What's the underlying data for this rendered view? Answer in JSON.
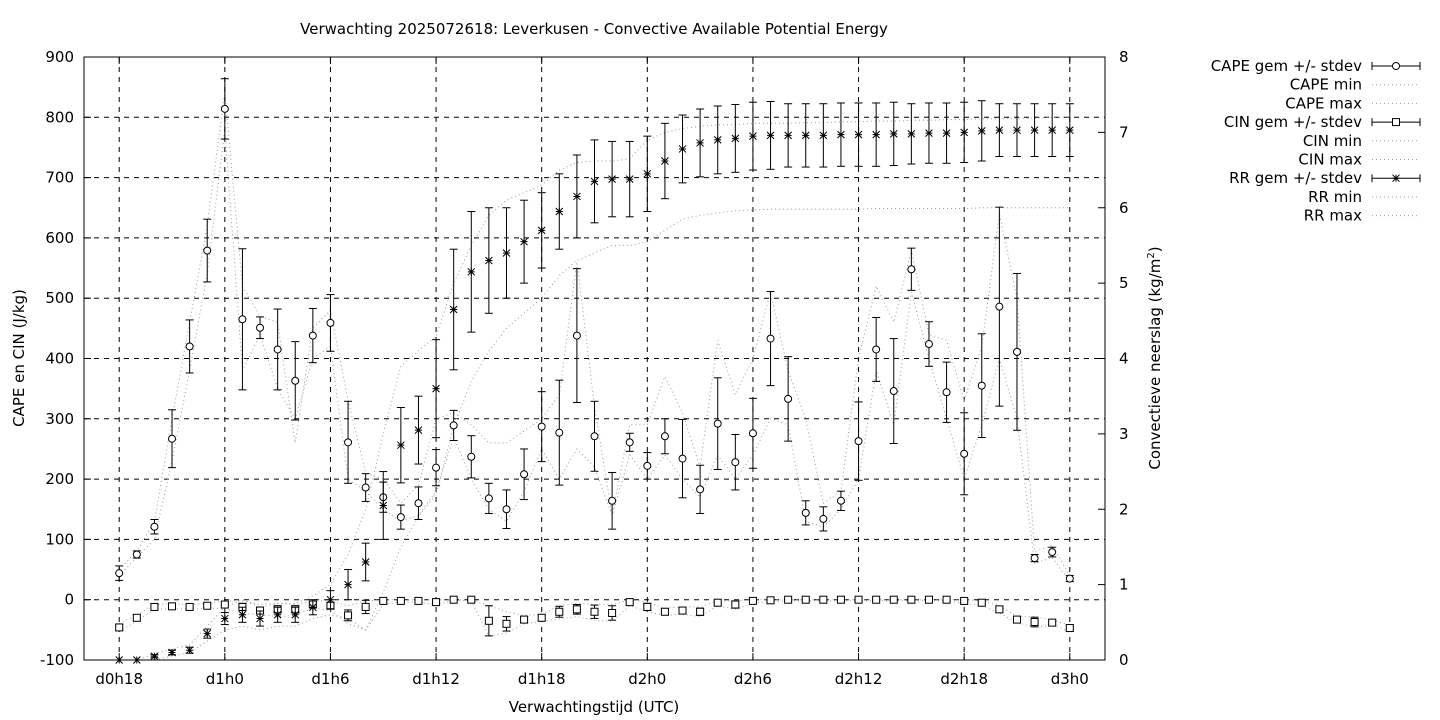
{
  "chart_data": {
    "type": "line",
    "title": "Verwachting 2025072618: Leverkusen - Convective Available Potential Energy",
    "xlabel": "Verwachtingstijd (UTC)",
    "ylabel": "CAPE en CIN (J/kg)",
    "y2label_main": "Convectieve neerslag (kg/m",
    "y2label_sup": "2",
    "y2label_end": ")",
    "x_unit": "hours after 2025-07-26 18 UTC",
    "xlim": [
      -2,
      56
    ],
    "ylim": [
      -100,
      900
    ],
    "y2lim": [
      0,
      8
    ],
    "grid": true,
    "legend_position": "outside-right",
    "x_ticks": [
      {
        "value": 0,
        "label": "d0h18"
      },
      {
        "value": 6,
        "label": "d1h0"
      },
      {
        "value": 12,
        "label": "d1h6"
      },
      {
        "value": 18,
        "label": "d1h12"
      },
      {
        "value": 24,
        "label": "d1h18"
      },
      {
        "value": 30,
        "label": "d2h0"
      },
      {
        "value": 36,
        "label": "d2h6"
      },
      {
        "value": 42,
        "label": "d2h12"
      },
      {
        "value": 48,
        "label": "d2h18"
      },
      {
        "value": 54,
        "label": "d3h0"
      }
    ],
    "y_ticks": [
      {
        "value": -100,
        "label": "-100"
      },
      {
        "value": 0,
        "label": "0"
      },
      {
        "value": 100,
        "label": "100"
      },
      {
        "value": 200,
        "label": "200"
      },
      {
        "value": 300,
        "label": "300"
      },
      {
        "value": 400,
        "label": "400"
      },
      {
        "value": 500,
        "label": "500"
      },
      {
        "value": 600,
        "label": "600"
      },
      {
        "value": 700,
        "label": "700"
      },
      {
        "value": 800,
        "label": "800"
      },
      {
        "value": 900,
        "label": "900"
      }
    ],
    "y2_ticks": [
      {
        "value": 0,
        "label": "0"
      },
      {
        "value": 1,
        "label": "1"
      },
      {
        "value": 2,
        "label": "2"
      },
      {
        "value": 3,
        "label": "3"
      },
      {
        "value": 4,
        "label": "4"
      },
      {
        "value": 5,
        "label": "5"
      },
      {
        "value": 6,
        "label": "6"
      },
      {
        "value": 7,
        "label": "7"
      },
      {
        "value": 8,
        "label": "8"
      }
    ],
    "legend": [
      {
        "label": "CAPE gem +/- stdev",
        "style": "circle-errorbar"
      },
      {
        "label": "CAPE min",
        "style": "dotted"
      },
      {
        "label": "CAPE max",
        "style": "dotted"
      },
      {
        "label": "CIN gem +/- stdev",
        "style": "square-errorbar"
      },
      {
        "label": "CIN min",
        "style": "dotted"
      },
      {
        "label": "CIN max",
        "style": "dotted"
      },
      {
        "label": "RR gem +/- stdev",
        "style": "star-errorbar"
      },
      {
        "label": "RR min",
        "style": "dotted"
      },
      {
        "label": "RR max",
        "style": "dotted"
      }
    ],
    "x": [
      0,
      1,
      2,
      3,
      4,
      5,
      6,
      7,
      8,
      9,
      10,
      11,
      12,
      13,
      14,
      15,
      16,
      17,
      18,
      19,
      20,
      21,
      22,
      23,
      24,
      25,
      26,
      27,
      28,
      29,
      30,
      31,
      32,
      33,
      34,
      35,
      36,
      37,
      38,
      39,
      40,
      41,
      42,
      43,
      44,
      45,
      46,
      47,
      48,
      49,
      50,
      51,
      52,
      53,
      54
    ],
    "cape_mean": [
      44,
      75,
      121,
      267,
      420,
      579,
      814,
      465,
      451,
      415,
      363,
      438,
      459,
      261,
      186,
      170,
      137,
      160,
      219,
      289,
      237,
      168,
      150,
      208,
      287,
      277,
      438,
      271,
      164,
      261,
      222,
      271,
      234,
      183,
      292,
      228,
      276,
      433,
      333,
      144,
      134,
      164,
      263,
      415,
      346,
      548,
      424,
      344,
      242,
      355,
      486,
      411,
      69,
      79,
      35
    ],
    "cape_stdev": [
      12,
      6,
      12,
      48,
      44,
      52,
      50,
      117,
      18,
      67,
      65,
      45,
      47,
      68,
      23,
      25,
      20,
      27,
      30,
      25,
      35,
      25,
      32,
      42,
      58,
      87,
      111,
      58,
      47,
      15,
      22,
      29,
      65,
      40,
      76,
      46,
      58,
      78,
      70,
      20,
      20,
      16,
      65,
      53,
      87,
      35,
      37,
      50,
      68,
      86,
      165,
      130,
      6,
      8,
      5
    ],
    "cape_min": [
      40,
      70,
      100,
      230,
      380,
      540,
      780,
      380,
      440,
      350,
      300,
      400,
      420,
      200,
      180,
      150,
      130,
      140,
      180,
      270,
      200,
      150,
      130,
      180,
      250,
      200,
      250,
      220,
      140,
      240,
      200,
      240,
      200,
      170,
      240,
      200,
      240,
      300,
      290,
      130,
      120,
      150,
      200,
      380,
      290,
      510,
      400,
      300,
      200,
      290,
      400,
      300,
      60,
      70,
      30
    ],
    "cape_max": [
      50,
      80,
      130,
      300,
      460,
      620,
      840,
      520,
      470,
      460,
      260,
      450,
      480,
      330,
      210,
      200,
      160,
      190,
      300,
      310,
      290,
      260,
      260,
      280,
      300,
      340,
      560,
      320,
      140,
      290,
      290,
      370,
      310,
      220,
      430,
      340,
      400,
      510,
      380,
      300,
      160,
      180,
      400,
      520,
      460,
      580,
      440,
      430,
      330,
      420,
      640,
      500,
      80,
      90,
      40
    ],
    "cin_mean": [
      -46,
      -30,
      -12,
      -11,
      -12,
      -10,
      -8,
      -12,
      -18,
      -16,
      -16,
      -8,
      -10,
      -26,
      -12,
      -2,
      -2,
      -2,
      -4,
      0,
      0,
      -35,
      -40,
      -33,
      -30,
      -20,
      -16,
      -20,
      -22,
      -4,
      -12,
      -20,
      -18,
      -20,
      -5,
      -8,
      -2,
      -1,
      0,
      0,
      0,
      0,
      0,
      0,
      0,
      0,
      0,
      0,
      -2,
      -5,
      -16,
      -33,
      -37,
      -38,
      -47
    ],
    "cin_stdev": [
      5,
      5,
      3,
      3,
      3,
      3,
      4,
      6,
      5,
      6,
      6,
      4,
      5,
      9,
      11,
      2,
      1,
      1,
      2,
      1,
      1,
      25,
      12,
      5,
      4,
      9,
      8,
      11,
      12,
      3,
      6,
      4,
      5,
      6,
      3,
      6,
      2,
      1,
      1,
      1,
      1,
      1,
      1,
      1,
      1,
      1,
      1,
      1,
      2,
      3,
      5,
      3,
      8,
      3,
      5
    ],
    "cin_min": [
      -52,
      -36,
      -16,
      -15,
      -16,
      -14,
      -15,
      -22,
      -25,
      -28,
      -26,
      -14,
      -18,
      -40,
      -50,
      -8,
      -4,
      -4,
      -8,
      -2,
      -2,
      -60,
      -55,
      -40,
      -36,
      -32,
      -28,
      -34,
      -36,
      -10,
      -20,
      -26,
      -24,
      -28,
      -10,
      -16,
      -6,
      -3,
      -2,
      -2,
      -2,
      -2,
      -2,
      -2,
      -2,
      -2,
      -2,
      -2,
      -6,
      -10,
      -22,
      -38,
      -46,
      -42,
      -52
    ],
    "cin_max": [
      -40,
      -25,
      -8,
      -7,
      -8,
      -6,
      -2,
      -2,
      -8,
      -6,
      -8,
      -2,
      -2,
      -10,
      -2,
      0,
      0,
      0,
      0,
      0,
      0,
      -10,
      -20,
      -26,
      -24,
      -10,
      -6,
      -8,
      -8,
      0,
      -4,
      -14,
      -12,
      -12,
      -2,
      -2,
      0,
      0,
      0,
      0,
      0,
      0,
      0,
      0,
      0,
      0,
      0,
      0,
      0,
      -2,
      -10,
      -28,
      -28,
      -34,
      -42
    ],
    "rr_mean": [
      0,
      0,
      0.05,
      0.1,
      0.13,
      0.35,
      0.55,
      0.6,
      0.55,
      0.6,
      0.6,
      0.7,
      0.8,
      1.0,
      1.3,
      2.05,
      2.85,
      3.05,
      3.6,
      4.65,
      5.15,
      5.3,
      5.4,
      5.55,
      5.7,
      5.95,
      6.15,
      6.35,
      6.38,
      6.38,
      6.45,
      6.62,
      6.78,
      6.86,
      6.9,
      6.92,
      6.95,
      6.96,
      6.96,
      6.96,
      6.96,
      6.97,
      6.97,
      6.97,
      6.98,
      6.98,
      6.99,
      6.99,
      7.0,
      7.02,
      7.03,
      7.03,
      7.03,
      7.03,
      7.03
    ],
    "rr_stdev": [
      0,
      0,
      0.02,
      0.03,
      0.04,
      0.06,
      0.08,
      0.1,
      0.1,
      0.1,
      0.1,
      0.1,
      0.12,
      0.2,
      0.25,
      0.45,
      0.5,
      0.45,
      0.65,
      0.8,
      0.8,
      0.7,
      0.6,
      0.55,
      0.5,
      0.5,
      0.55,
      0.55,
      0.5,
      0.5,
      0.5,
      0.5,
      0.45,
      0.45,
      0.45,
      0.45,
      0.45,
      0.45,
      0.42,
      0.42,
      0.42,
      0.42,
      0.42,
      0.42,
      0.42,
      0.4,
      0.4,
      0.4,
      0.4,
      0.4,
      0.35,
      0.35,
      0.35,
      0.35,
      0.35
    ],
    "rr_min": [
      0,
      0,
      0,
      0.05,
      0.1,
      0.25,
      0.4,
      0.45,
      0.4,
      0.45,
      0.45,
      0.55,
      0.6,
      0.55,
      0.4,
      0.9,
      1.5,
      1.9,
      2.2,
      3.1,
      3.7,
      4.1,
      4.4,
      4.6,
      4.8,
      5.1,
      5.3,
      5.4,
      5.5,
      5.5,
      5.55,
      5.7,
      5.85,
      5.9,
      5.93,
      5.96,
      5.97,
      5.98,
      5.98,
      5.98,
      5.98,
      5.98,
      5.98,
      5.99,
      5.99,
      5.99,
      5.99,
      5.99,
      5.99,
      6.0,
      6.0,
      6.0,
      6.0,
      6.0,
      6.0
    ],
    "rr_max": [
      0,
      0,
      0.08,
      0.15,
      0.2,
      0.45,
      0.7,
      0.8,
      0.7,
      0.75,
      0.75,
      0.85,
      1.0,
      1.4,
      2.0,
      3.0,
      3.9,
      4.1,
      4.3,
      5.0,
      5.5,
      5.9,
      6.1,
      6.2,
      6.3,
      6.5,
      6.6,
      6.62,
      6.62,
      6.65,
      6.9,
      7.0,
      7.05,
      7.08,
      7.1,
      7.1,
      7.12,
      7.12,
      7.12,
      7.13,
      7.13,
      7.14,
      7.14,
      7.15,
      7.15,
      7.16,
      7.16,
      7.17,
      7.17,
      7.18,
      7.18,
      7.19,
      7.19,
      7.2,
      7.2
    ]
  }
}
